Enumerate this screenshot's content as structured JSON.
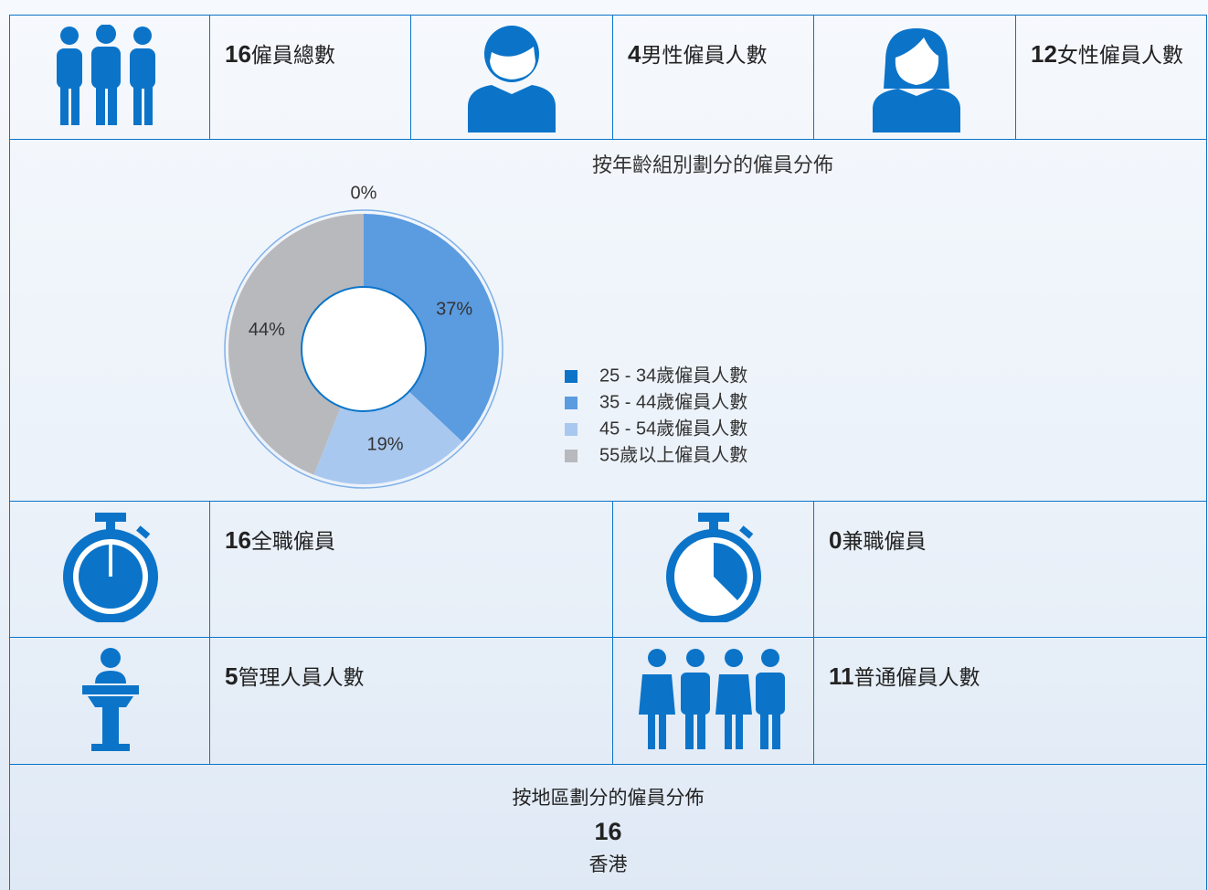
{
  "stats_top": [
    {
      "value": 16,
      "label": "僱員總數"
    },
    {
      "value": 4,
      "label": "男性僱員人數"
    },
    {
      "value": 12,
      "label": "女性僱員人數"
    }
  ],
  "chart_data": {
    "type": "pie",
    "donut": true,
    "title": "按年齡組別劃分的僱員分佈",
    "categories": [
      "25 - 34歲僱員人數",
      "35 - 44歲僱員人數",
      "45 - 54歲僱員人數",
      "55歲以上僱員人數"
    ],
    "values": [
      0,
      37,
      19,
      44
    ],
    "value_labels": [
      "0%",
      "37%",
      "19%",
      "44%"
    ],
    "colors": [
      "#0b74c9",
      "#5b9be0",
      "#a9c8ef",
      "#b8b9bd"
    ]
  },
  "stats_mid": [
    {
      "value": 16,
      "label": "全職僱員"
    },
    {
      "value": 0,
      "label": "兼職僱員"
    },
    {
      "value": 5,
      "label": "管理人員人數"
    },
    {
      "value": 11,
      "label": "普通僱員人數"
    }
  ],
  "region": {
    "title": "按地區劃分的僱員分佈",
    "count": 16,
    "name": "香港"
  }
}
